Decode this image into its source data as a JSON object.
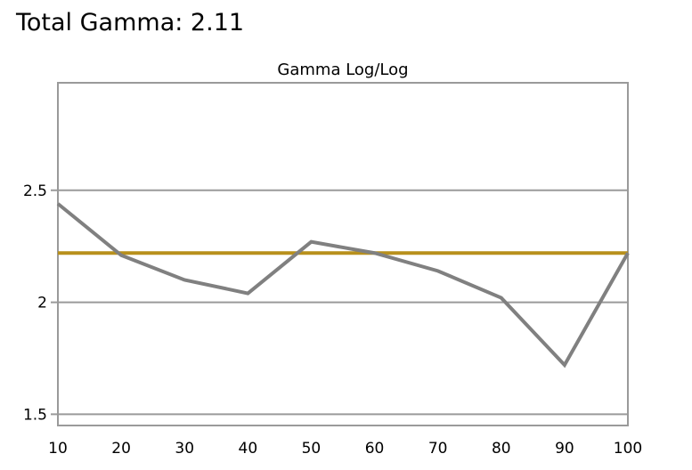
{
  "header": {
    "title": "Total Gamma: 2.11"
  },
  "colors": {
    "series": "#808080",
    "target": "#b8901c",
    "grid": "#9a9a9a",
    "frame": "#9a9a9a"
  },
  "chart_data": {
    "type": "line",
    "title": "Gamma Log/Log",
    "xlabel": "",
    "ylabel": "",
    "x": [
      10,
      20,
      30,
      40,
      50,
      60,
      70,
      80,
      90,
      100
    ],
    "xlim": [
      10,
      100
    ],
    "ylim": [
      1.45,
      2.98
    ],
    "x_ticks": [
      "10",
      "20",
      "30",
      "40",
      "50",
      "60",
      "70",
      "80",
      "90",
      "100"
    ],
    "y_ticks": [
      {
        "value": 1.5,
        "label": "1.5"
      },
      {
        "value": 2.0,
        "label": "2"
      },
      {
        "value": 2.5,
        "label": "2.5"
      }
    ],
    "grid": "horizontal",
    "legend": "none",
    "series": [
      {
        "values": [
          2.44,
          2.21,
          2.1,
          2.04,
          2.27,
          2.22,
          2.14,
          2.02,
          1.72,
          2.22
        ]
      }
    ],
    "reference_line": {
      "value": 2.22
    }
  }
}
